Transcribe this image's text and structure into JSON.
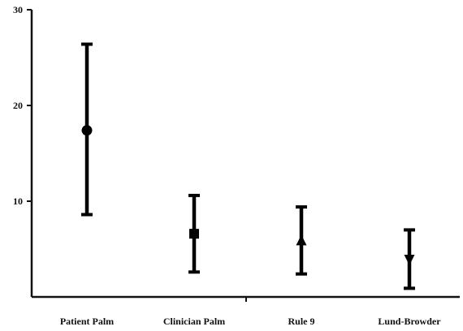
{
  "chart_data": {
    "type": "scatter",
    "title": "",
    "xlabel": "",
    "ylabel": "",
    "categories": [
      "Patient Palm",
      "Clinician Palm",
      "Rule 9",
      "Lund-Browder"
    ],
    "y_ticks": [
      "30",
      "20",
      "10"
    ],
    "ylim": [
      0,
      30
    ],
    "grid": false,
    "legend": "none",
    "series": [
      {
        "points": [
          {
            "category": "Patient Palm",
            "mean": 17.4,
            "lower": 8.6,
            "upper": 26.4,
            "marker": "circle-icon"
          },
          {
            "category": "Clinician Palm",
            "mean": 6.6,
            "lower": 2.6,
            "upper": 10.6,
            "marker": "square-icon"
          },
          {
            "category": "Rule 9",
            "mean": 5.9,
            "lower": 2.4,
            "upper": 9.4,
            "marker": "triangle-up-icon"
          },
          {
            "category": "Lund-Browder",
            "mean": 3.9,
            "lower": 0.9,
            "upper": 7.0,
            "marker": "triangle-down-icon"
          }
        ]
      }
    ],
    "colors": {
      "ink": "#000000",
      "background": "#ffffff"
    }
  }
}
